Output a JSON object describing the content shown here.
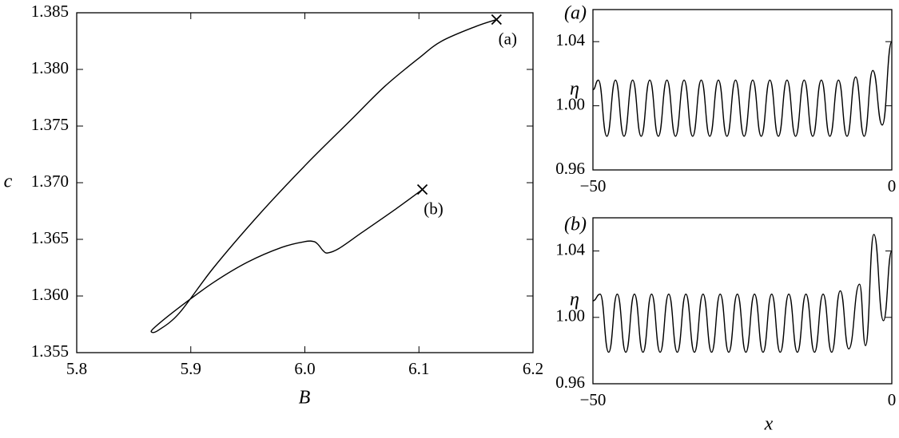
{
  "chart_data": [
    {
      "type": "line",
      "x_label": "B",
      "y_label": "c",
      "xlim": [
        5.8,
        6.2
      ],
      "xticks": [
        5.8,
        5.9,
        {
          "value": 6,
          "label": "6.0"
        },
        6.1,
        6.2
      ],
      "ylim": [
        1.355,
        1.385
      ],
      "yticks": [
        1.355,
        {
          "value": 1.36,
          "label": "1.360"
        },
        1.365,
        {
          "value": 1.37,
          "label": "1.370"
        },
        1.375,
        {
          "value": 1.38,
          "label": "1.380"
        },
        1.385
      ],
      "color": "#000000",
      "x": [
        6.168,
        6.15,
        6.12,
        6.1,
        6.07,
        6.04,
        6.0,
        5.96,
        5.92,
        5.89,
        5.872,
        5.866,
        5.868,
        5.89,
        5.92,
        5.95,
        5.98,
        6.0,
        6.008,
        6.012,
        6.016,
        6.02,
        6.03,
        6.05,
        6.08,
        6.103
      ],
      "y": [
        1.3844,
        1.3838,
        1.3825,
        1.381,
        1.3785,
        1.3755,
        1.3715,
        1.3672,
        1.3625,
        1.3585,
        1.357,
        1.3568,
        1.3572,
        1.359,
        1.3612,
        1.363,
        1.3643,
        1.3648,
        1.3648,
        1.3645,
        1.364,
        1.3638,
        1.3642,
        1.3656,
        1.3677,
        1.3694
      ],
      "points": [
        {
          "label": "(a)",
          "x": 6.168,
          "y": 1.3844
        },
        {
          "label": "(b)",
          "x": 6.103,
          "y": 1.3694
        }
      ]
    },
    {
      "type": "line",
      "title": "(a)",
      "y_label": "η",
      "xlim": [
        -50,
        0
      ],
      "xticks": [
        {
          "value": -50,
          "label": "−50"
        },
        0
      ],
      "ylim": [
        0.96,
        1.06
      ],
      "yticks": [
        0.96,
        {
          "value": 1.0,
          "label": "1.00"
        },
        1.04
      ],
      "color": "#000000",
      "x": [
        -50,
        -49.1,
        -47.67,
        -46.23,
        -44.8,
        -43.36,
        -41.93,
        -40.49,
        -39.06,
        -37.62,
        -36.19,
        -34.75,
        -33.32,
        -31.88,
        -30.45,
        -29.01,
        -27.58,
        -26.14,
        -24.71,
        -23.27,
        -21.84,
        -20.4,
        -18.97,
        -17.53,
        -16.1,
        -14.66,
        -13.23,
        -11.79,
        -10.36,
        -8.92,
        -7.49,
        -6.05,
        -4.62,
        -3.18,
        -1.6,
        0
      ],
      "y": [
        1.01,
        1.016,
        0.981,
        1.016,
        0.981,
        1.016,
        0.981,
        1.016,
        0.981,
        1.016,
        0.981,
        1.016,
        0.981,
        1.016,
        0.981,
        1.016,
        0.981,
        1.016,
        0.981,
        1.016,
        0.981,
        1.016,
        0.981,
        1.016,
        0.981,
        1.016,
        0.981,
        1.016,
        0.981,
        1.016,
        0.981,
        1.018,
        0.981,
        1.022,
        0.988,
        1.04
      ]
    },
    {
      "type": "line",
      "title": "(b)",
      "y_label": "η",
      "x_label": "x",
      "xlim": [
        -50,
        0
      ],
      "xticks": [
        {
          "value": -50,
          "label": "−50"
        },
        0
      ],
      "ylim": [
        0.96,
        1.06
      ],
      "yticks": [
        0.96,
        {
          "value": 1.0,
          "label": "1.00"
        },
        1.04
      ],
      "color": "#000000",
      "x": [
        -50,
        -48.8,
        -47.37,
        -45.93,
        -44.5,
        -43.06,
        -41.63,
        -40.19,
        -38.76,
        -37.32,
        -35.89,
        -34.45,
        -33.02,
        -31.58,
        -30.15,
        -28.71,
        -27.28,
        -25.84,
        -24.41,
        -22.97,
        -21.54,
        -20.1,
        -18.67,
        -17.23,
        -15.8,
        -14.36,
        -12.93,
        -11.49,
        -10.06,
        -8.62,
        -7.2,
        -5.4,
        -4.4,
        -3.0,
        -1.4,
        0
      ],
      "y": [
        1.01,
        1.014,
        0.979,
        1.014,
        0.979,
        1.014,
        0.979,
        1.014,
        0.979,
        1.014,
        0.979,
        1.014,
        0.979,
        1.014,
        0.979,
        1.014,
        0.979,
        1.014,
        0.979,
        1.014,
        0.979,
        1.014,
        0.979,
        1.014,
        0.979,
        1.014,
        0.979,
        1.014,
        0.979,
        1.016,
        0.981,
        1.02,
        0.983,
        1.05,
        0.998,
        1.04
      ]
    }
  ]
}
